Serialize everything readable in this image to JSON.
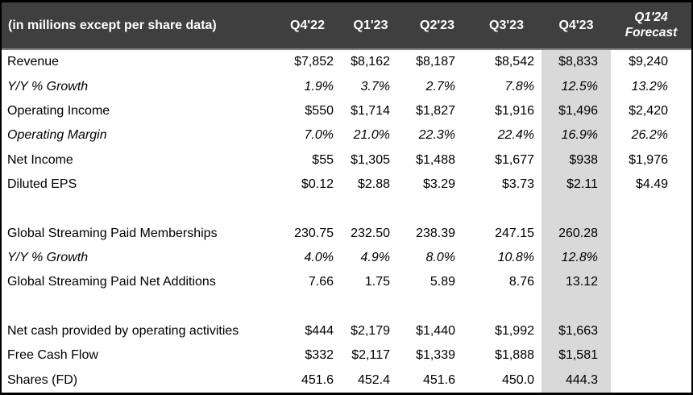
{
  "table": {
    "unit_label": "(in millions except per share data)",
    "columns": [
      "Q4'22",
      "Q1'23",
      "Q2'23",
      "Q3'23",
      "Q4'23"
    ],
    "forecast_header": {
      "line1": "Q1'24",
      "line2": "Forecast"
    },
    "highlight_column": "Q4'23",
    "highlight_column_index": 4,
    "rows": [
      {
        "label": "Revenue",
        "italic": false,
        "values": [
          "$7,852",
          "$8,162",
          "$8,187",
          "$8,542",
          "$8,833",
          "$9,240"
        ]
      },
      {
        "label": "Y/Y % Growth",
        "italic": true,
        "values": [
          "1.9%",
          "3.7%",
          "2.7%",
          "7.8%",
          "12.5%",
          "13.2%"
        ]
      },
      {
        "label": "Operating Income",
        "italic": false,
        "values": [
          "$550",
          "$1,714",
          "$1,827",
          "$1,916",
          "$1,496",
          "$2,420"
        ]
      },
      {
        "label": "Operating Margin",
        "italic": true,
        "values": [
          "7.0%",
          "21.0%",
          "22.3%",
          "22.4%",
          "16.9%",
          "26.2%"
        ]
      },
      {
        "label": "Net Income",
        "italic": false,
        "values": [
          "$55",
          "$1,305",
          "$1,488",
          "$1,677",
          "$938",
          "$1,976"
        ]
      },
      {
        "label": "Diluted EPS",
        "italic": false,
        "values": [
          "$0.12",
          "$2.88",
          "$3.29",
          "$3.73",
          "$2.11",
          "$4.49"
        ]
      },
      {
        "label": "",
        "italic": false,
        "values": [
          "",
          "",
          "",
          "",
          "",
          ""
        ]
      },
      {
        "label": "Global Streaming Paid Memberships",
        "italic": false,
        "values": [
          "230.75",
          "232.50",
          "238.39",
          "247.15",
          "260.28",
          ""
        ]
      },
      {
        "label": "Y/Y % Growth",
        "italic": true,
        "values": [
          "4.0%",
          "4.9%",
          "8.0%",
          "10.8%",
          "12.8%",
          ""
        ]
      },
      {
        "label": "Global Streaming Paid Net Additions",
        "italic": false,
        "values": [
          "7.66",
          "1.75",
          "5.89",
          "8.76",
          "13.12",
          ""
        ]
      },
      {
        "label": "",
        "italic": false,
        "values": [
          "",
          "",
          "",
          "",
          "",
          ""
        ]
      },
      {
        "label": "Net cash provided by operating activities",
        "italic": false,
        "values": [
          "$444",
          "$2,179",
          "$1,440",
          "$1,992",
          "$1,663",
          ""
        ]
      },
      {
        "label": "Free Cash Flow",
        "italic": false,
        "values": [
          "$332",
          "$2,117",
          "$1,339",
          "$1,888",
          "$1,581",
          ""
        ]
      },
      {
        "label": "Shares (FD)",
        "italic": false,
        "values": [
          "451.6",
          "452.4",
          "451.6",
          "450.0",
          "444.3",
          ""
        ]
      }
    ]
  },
  "colors": {
    "header_bg": "#3F3F3F",
    "header_text": "#FFFFFF",
    "highlight_bg": "#D9D9D9",
    "border": "#000000",
    "body_text": "#000000"
  }
}
